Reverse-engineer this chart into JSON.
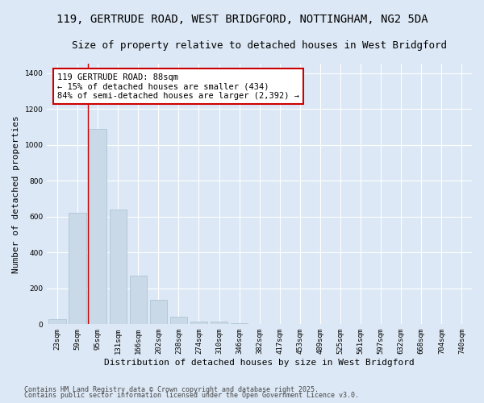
{
  "title_line1": "119, GERTRUDE ROAD, WEST BRIDGFORD, NOTTINGHAM, NG2 5DA",
  "title_line2": "Size of property relative to detached houses in West Bridgford",
  "xlabel": "Distribution of detached houses by size in West Bridgford",
  "ylabel": "Number of detached properties",
  "categories": [
    "23sqm",
    "59sqm",
    "95sqm",
    "131sqm",
    "166sqm",
    "202sqm",
    "238sqm",
    "274sqm",
    "310sqm",
    "346sqm",
    "382sqm",
    "417sqm",
    "453sqm",
    "489sqm",
    "525sqm",
    "561sqm",
    "597sqm",
    "632sqm",
    "668sqm",
    "704sqm",
    "740sqm"
  ],
  "values": [
    30,
    620,
    1090,
    640,
    270,
    135,
    40,
    15,
    15,
    5,
    0,
    0,
    0,
    0,
    0,
    0,
    0,
    0,
    0,
    0,
    0
  ],
  "bar_color": "#c9d9e8",
  "bar_edge_color": "#a8bfd0",
  "vline_x_index": 1.5,
  "vline_color": "#cc0000",
  "annotation_text": "119 GERTRUDE ROAD: 88sqm\n← 15% of detached houses are smaller (434)\n84% of semi-detached houses are larger (2,392) →",
  "annotation_box_facecolor": "#ffffff",
  "annotation_box_edgecolor": "#cc0000",
  "ylim": [
    0,
    1450
  ],
  "yticks": [
    0,
    200,
    400,
    600,
    800,
    1000,
    1200,
    1400
  ],
  "background_color": "#dce8f5",
  "grid_color": "#ffffff",
  "footer_line1": "Contains HM Land Registry data © Crown copyright and database right 2025.",
  "footer_line2": "Contains public sector information licensed under the Open Government Licence v3.0.",
  "title_fontsize": 10,
  "subtitle_fontsize": 9,
  "tick_fontsize": 6.5,
  "ylabel_fontsize": 8,
  "xlabel_fontsize": 8,
  "annotation_fontsize": 7.5,
  "footer_fontsize": 6
}
